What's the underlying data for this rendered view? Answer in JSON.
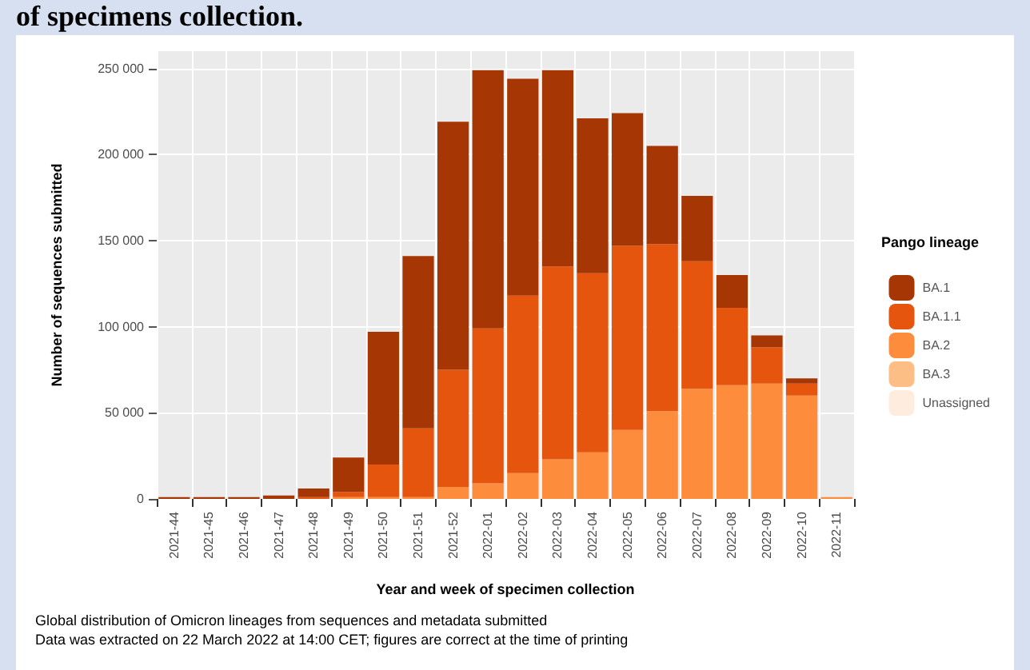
{
  "chart_data": {
    "type": "bar",
    "title": "of specimens collection.",
    "xlabel": "Year and week of specimen collection",
    "ylabel": "Number of sequences submitted",
    "legend_title": "Pango lineage",
    "annotations": [
      "Global distribution of Omicron lineages from sequences and metadata submitted",
      "Data was extracted on 22 March 2022 at 14:00 CET; figures are correct at the time of printing"
    ],
    "categories": [
      "2021-44",
      "2021-45",
      "2021-46",
      "2021-47",
      "2021-48",
      "2021-49",
      "2021-50",
      "2021-51",
      "2021-52",
      "2022-01",
      "2022-02",
      "2022-03",
      "2022-04",
      "2022-05",
      "2022-06",
      "2022-07",
      "2022-08",
      "2022-09",
      "2022-10",
      "2022-11"
    ],
    "stacked": true,
    "series": [
      {
        "name": "Unassigned",
        "color": "#feedde",
        "values": [
          0,
          0,
          0,
          0,
          0,
          0,
          0,
          0,
          0,
          0,
          0,
          0,
          0,
          0,
          0,
          0,
          0,
          0,
          0,
          0
        ]
      },
      {
        "name": "BA.3",
        "color": "#fdbe85",
        "values": [
          0,
          0,
          0,
          0,
          0,
          0,
          0,
          0,
          0,
          0,
          0,
          0,
          0,
          0,
          0,
          0,
          0,
          0,
          0,
          0
        ]
      },
      {
        "name": "BA.2",
        "color": "#fd8d3c",
        "values": [
          0,
          0,
          0,
          0,
          0,
          1000,
          1000,
          1000,
          7000,
          9000,
          15000,
          23000,
          27000,
          40000,
          51000,
          64000,
          66000,
          67000,
          60000,
          1000
        ]
      },
      {
        "name": "BA.1.1",
        "color": "#e6550d",
        "values": [
          0,
          0,
          0,
          0,
          1000,
          3000,
          19000,
          40000,
          68000,
          90000,
          103000,
          112000,
          104000,
          107000,
          97000,
          74000,
          45000,
          21000,
          7000,
          0
        ]
      },
      {
        "name": "BA.1",
        "color": "#a63603",
        "values": [
          1000,
          1000,
          1000,
          2000,
          5000,
          20000,
          77000,
          100000,
          144000,
          150000,
          126000,
          114000,
          90000,
          77000,
          57000,
          38000,
          19000,
          7000,
          3000,
          0
        ]
      }
    ],
    "ylim": [
      0,
      260000
    ],
    "yticks": [
      0,
      50000,
      100000,
      150000,
      200000,
      250000
    ],
    "grid": true,
    "legend": "right"
  }
}
